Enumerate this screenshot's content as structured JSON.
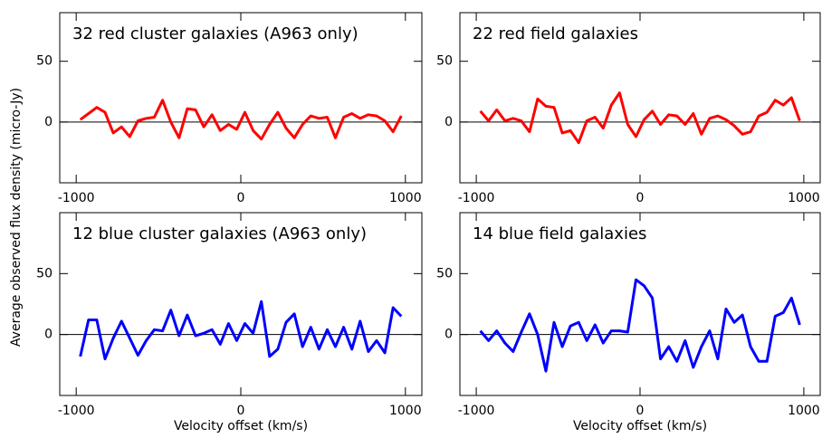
{
  "ylabel": "Average observed flux density (micro-Jy)",
  "chart_data": [
    {
      "type": "line",
      "title": "32 red cluster galaxies (A963 only)",
      "color": "#ff0000",
      "hline": 0,
      "xlim": [
        -1100,
        1100
      ],
      "xticks": [
        -1000,
        0,
        1000
      ],
      "ylim": [
        -50,
        90
      ],
      "yticks": [
        0,
        50
      ],
      "x": [
        -975,
        -925,
        -875,
        -825,
        -775,
        -725,
        -675,
        -625,
        -575,
        -525,
        -475,
        -425,
        -375,
        -325,
        -275,
        -225,
        -175,
        -125,
        -75,
        -25,
        25,
        75,
        125,
        175,
        225,
        275,
        325,
        375,
        425,
        475,
        525,
        575,
        625,
        675,
        725,
        775,
        825,
        875,
        925,
        975
      ],
      "values": [
        2,
        7,
        12,
        8,
        -9,
        -4,
        -12,
        1,
        3,
        4,
        18,
        0,
        -13,
        11,
        10,
        -4,
        6,
        -7,
        -2,
        -6,
        8,
        -7,
        -14,
        -2,
        8,
        -5,
        -13,
        -2,
        5,
        3,
        4,
        -13,
        4,
        7,
        3,
        6,
        5,
        1,
        -8,
        5
      ]
    },
    {
      "type": "line",
      "title": "22 red field galaxies",
      "color": "#ff0000",
      "hline": 0,
      "xlim": [
        -1100,
        1100
      ],
      "xticks": [
        -1000,
        0,
        1000
      ],
      "ylim": [
        -50,
        90
      ],
      "yticks": [
        0,
        50
      ],
      "x": [
        -975,
        -925,
        -875,
        -825,
        -775,
        -725,
        -675,
        -625,
        -575,
        -525,
        -475,
        -425,
        -375,
        -325,
        -275,
        -225,
        -175,
        -125,
        -75,
        -25,
        25,
        75,
        125,
        175,
        225,
        275,
        325,
        375,
        425,
        475,
        525,
        575,
        625,
        675,
        725,
        775,
        825,
        875,
        925,
        975
      ],
      "values": [
        9,
        1,
        10,
        1,
        3,
        1,
        -8,
        19,
        13,
        12,
        -9,
        -7,
        -17,
        1,
        4,
        -5,
        14,
        24,
        -2,
        -12,
        2,
        9,
        -2,
        6,
        5,
        -2,
        7,
        -10,
        3,
        5,
        2,
        -3,
        -10,
        -8,
        5,
        8,
        18,
        14,
        20,
        1
      ]
    },
    {
      "type": "line",
      "title": "12 blue cluster galaxies (A963 only)",
      "color": "#0000ff",
      "hline": 0,
      "xlabel": "Velocity offset (km/s)",
      "xlim": [
        -1100,
        1100
      ],
      "xticks": [
        -1000,
        0,
        1000
      ],
      "ylim": [
        -50,
        100
      ],
      "yticks": [
        0,
        50
      ],
      "x": [
        -975,
        -925,
        -875,
        -825,
        -775,
        -725,
        -675,
        -625,
        -575,
        -525,
        -475,
        -425,
        -375,
        -325,
        -275,
        -225,
        -175,
        -125,
        -75,
        -25,
        25,
        75,
        125,
        175,
        225,
        275,
        325,
        375,
        425,
        475,
        525,
        575,
        625,
        675,
        725,
        775,
        825,
        875,
        925,
        975
      ],
      "values": [
        -18,
        12,
        12,
        -20,
        -3,
        11,
        -3,
        -17,
        -5,
        4,
        3,
        20,
        -1,
        16,
        -1,
        1,
        4,
        -8,
        9,
        -5,
        9,
        1,
        27,
        -18,
        -12,
        10,
        17,
        -10,
        6,
        -12,
        4,
        -10,
        6,
        -12,
        11,
        -14,
        -5,
        -15,
        22,
        15
      ]
    },
    {
      "type": "line",
      "title": "14 blue field galaxies",
      "color": "#0000ff",
      "hline": 0,
      "xlabel": "Velocity offset (km/s)",
      "xlim": [
        -1100,
        1100
      ],
      "xticks": [
        -1000,
        0,
        1000
      ],
      "ylim": [
        -50,
        100
      ],
      "yticks": [
        0,
        50
      ],
      "x": [
        -975,
        -925,
        -875,
        -825,
        -775,
        -725,
        -675,
        -625,
        -575,
        -525,
        -475,
        -425,
        -375,
        -325,
        -275,
        -225,
        -175,
        -125,
        -75,
        -25,
        25,
        75,
        125,
        175,
        225,
        275,
        325,
        375,
        425,
        475,
        525,
        575,
        625,
        675,
        725,
        775,
        825,
        875,
        925,
        975
      ],
      "values": [
        3,
        -5,
        3,
        -7,
        -14,
        2,
        17,
        0,
        -30,
        10,
        -10,
        7,
        10,
        -5,
        8,
        -7,
        3,
        3,
        2,
        45,
        40,
        30,
        -20,
        -10,
        -22,
        -5,
        -27,
        -10,
        3,
        -20,
        21,
        10,
        16,
        -10,
        -22,
        -22,
        15,
        18,
        30,
        8
      ]
    }
  ]
}
